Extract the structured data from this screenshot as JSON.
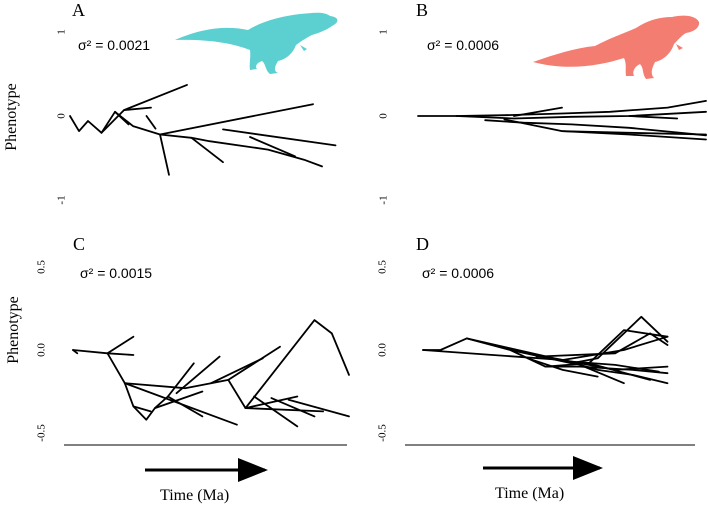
{
  "colors": {
    "ink": "#000000",
    "dino_a": "#5ccfd0",
    "dino_b": "#f47d72"
  },
  "time_axis": {
    "label": "Time (Ma)"
  },
  "chart_data": [
    {
      "type": "line",
      "panel_label": "A",
      "annotation": "σ² = 0.0021",
      "ylabel": "Phenotype",
      "ylim": [
        -1,
        1
      ],
      "yticks": [
        {
          "v": 1,
          "t": "1"
        },
        {
          "v": 0,
          "t": "0"
        },
        {
          "v": -1,
          "t": "-1"
        }
      ],
      "silhouette": "theropod-cyan-icon",
      "series": [
        {
          "x": [
            0.0,
            0.1,
            0.2,
            0.35,
            0.5,
            0.7,
            1.0,
            1.35,
            1.55,
            2.2,
            2.6,
            2.8
          ],
          "y": [
            0.0,
            -0.18,
            -0.06,
            -0.2,
            0.05,
            -0.12,
            -0.22,
            -0.26,
            -0.3,
            -0.4,
            -0.52,
            -0.6
          ]
        },
        {
          "x": [
            0.35,
            0.6,
            1.3
          ],
          "y": [
            -0.2,
            0.07,
            0.37
          ]
        },
        {
          "x": [
            0.6,
            0.9
          ],
          "y": [
            0.07,
            0.1
          ]
        },
        {
          "x": [
            0.5,
            0.65
          ],
          "y": [
            0.05,
            -0.1
          ]
        },
        {
          "x": [
            0.85,
            0.95
          ],
          "y": [
            0.0,
            -0.15
          ]
        },
        {
          "x": [
            1.0,
            1.1
          ],
          "y": [
            -0.22,
            -0.7
          ]
        },
        {
          "x": [
            1.0,
            2.7
          ],
          "y": [
            -0.22,
            0.14
          ]
        },
        {
          "x": [
            1.35,
            1.7
          ],
          "y": [
            -0.26,
            -0.55
          ]
        },
        {
          "x": [
            1.7,
            2.95
          ],
          "y": [
            -0.16,
            -0.35
          ]
        },
        {
          "x": [
            2.0,
            2.5
          ],
          "y": [
            -0.25,
            -0.48
          ]
        }
      ]
    },
    {
      "type": "line",
      "panel_label": "B",
      "annotation": "σ² = 0.0006",
      "ylabel": "",
      "ylim": [
        -1,
        1
      ],
      "yticks": [
        {
          "v": 1,
          "t": "1"
        },
        {
          "v": 0,
          "t": "0"
        },
        {
          "v": -1,
          "t": "-1"
        }
      ],
      "silhouette": "ceratosaur-salmon-icon",
      "series": [
        {
          "x": [
            0.0,
            0.4,
            0.9,
            1.5,
            2.0,
            2.6,
            3.0
          ],
          "y": [
            0.0,
            0.0,
            0.01,
            0.03,
            0.05,
            0.1,
            0.18
          ]
        },
        {
          "x": [
            0.4,
            1.0,
            1.6,
            2.2,
            3.0
          ],
          "y": [
            0.0,
            -0.03,
            -0.01,
            0.0,
            0.05
          ]
        },
        {
          "x": [
            0.7,
            1.1,
            1.6,
            2.2,
            3.0
          ],
          "y": [
            -0.05,
            -0.08,
            -0.1,
            -0.14,
            -0.23
          ]
        },
        {
          "x": [
            0.9,
            1.5,
            2.2,
            3.0
          ],
          "y": [
            -0.04,
            -0.18,
            -0.22,
            -0.28
          ]
        },
        {
          "x": [
            1.5,
            2.2,
            3.0
          ],
          "y": [
            -0.18,
            -0.2,
            -0.22
          ]
        },
        {
          "x": [
            1.0,
            1.5
          ],
          "y": [
            0.0,
            0.1
          ]
        },
        {
          "x": [
            2.2,
            2.7
          ],
          "y": [
            0.0,
            -0.03
          ]
        }
      ]
    },
    {
      "type": "line",
      "panel_label": "C",
      "annotation": "σ² = 0.0015",
      "ylabel": "Phenotype",
      "ylim": [
        -0.5,
        0.5
      ],
      "yticks": [
        {
          "v": 0.5,
          "t": "0.5"
        },
        {
          "v": 0,
          "t": "0.0"
        },
        {
          "v": -0.5,
          "t": "-0.5"
        }
      ],
      "series": [
        {
          "x": [
            0.0,
            0.05
          ],
          "y": [
            0.0,
            -0.02
          ]
        },
        {
          "x": [
            0.0,
            0.4,
            0.7
          ],
          "y": [
            0.0,
            -0.02,
            0.08
          ]
        },
        {
          "x": [
            0.4,
            0.7
          ],
          "y": [
            -0.02,
            -0.03
          ]
        },
        {
          "x": [
            0.4,
            0.6,
            0.7,
            0.85,
            0.95,
            1.1,
            1.4
          ],
          "y": [
            -0.02,
            -0.2,
            -0.34,
            -0.42,
            -0.35,
            -0.28,
            -0.08
          ]
        },
        {
          "x": [
            0.6,
            1.3,
            1.6,
            1.8,
            2.0,
            2.8,
            3.0,
            3.2
          ],
          "y": [
            -0.2,
            -0.23,
            -0.2,
            -0.18,
            -0.35,
            0.18,
            0.1,
            -0.15
          ]
        },
        {
          "x": [
            0.7,
            0.9
          ],
          "y": [
            -0.34,
            -0.37
          ]
        },
        {
          "x": [
            0.95,
            1.5
          ],
          "y": [
            -0.35,
            -0.25
          ]
        },
        {
          "x": [
            1.1,
            1.5
          ],
          "y": [
            -0.28,
            -0.4
          ]
        },
        {
          "x": [
            0.6,
            1.9
          ],
          "y": [
            -0.2,
            -0.45
          ]
        },
        {
          "x": [
            1.2,
            1.7
          ],
          "y": [
            -0.26,
            -0.04
          ]
        },
        {
          "x": [
            1.6,
            2.2
          ],
          "y": [
            -0.2,
            -0.05
          ]
        },
        {
          "x": [
            1.8,
            2.4
          ],
          "y": [
            -0.18,
            0.02
          ]
        },
        {
          "x": [
            2.0,
            2.6
          ],
          "y": [
            -0.35,
            -0.28
          ]
        },
        {
          "x": [
            2.0,
            2.9
          ],
          "y": [
            -0.35,
            -0.37
          ]
        },
        {
          "x": [
            2.1,
            2.6
          ],
          "y": [
            -0.28,
            -0.46
          ]
        },
        {
          "x": [
            2.5,
            3.2
          ],
          "y": [
            -0.3,
            -0.4
          ]
        },
        {
          "x": [
            2.3,
            2.8
          ],
          "y": [
            -0.29,
            -0.4
          ]
        }
      ]
    },
    {
      "type": "line",
      "panel_label": "D",
      "annotation": "σ² = 0.0006",
      "ylabel": "",
      "ylim": [
        -0.5,
        0.5
      ],
      "yticks": [
        {
          "v": 0.5,
          "t": "0.5"
        },
        {
          "v": 0,
          "t": "0.0"
        },
        {
          "v": -0.5,
          "t": "-0.5"
        }
      ],
      "series": [
        {
          "x": [
            0.0,
            0.2,
            0.5,
            1.0,
            1.4,
            1.9,
            2.6
          ],
          "y": [
            0.0,
            0.0,
            0.07,
            0.0,
            -0.1,
            -0.08,
            -0.18
          ]
        },
        {
          "x": [
            0.0,
            0.8,
            1.6,
            2.3,
            2.8
          ],
          "y": [
            0.0,
            -0.03,
            -0.06,
            0.0,
            0.08
          ]
        },
        {
          "x": [
            0.5,
            1.5,
            2.2,
            2.8
          ],
          "y": [
            0.07,
            -0.05,
            -0.12,
            -0.1
          ]
        },
        {
          "x": [
            1.0,
            1.7,
            2.0,
            2.5,
            2.8
          ],
          "y": [
            0.0,
            -0.08,
            -0.05,
            0.2,
            0.05
          ]
        },
        {
          "x": [
            1.4,
            1.8,
            2.4,
            2.8
          ],
          "y": [
            -0.1,
            -0.1,
            -0.12,
            -0.14
          ]
        },
        {
          "x": [
            1.6,
            2.0,
            2.4,
            2.8
          ],
          "y": [
            -0.06,
            -0.12,
            -0.15,
            -0.2
          ]
        },
        {
          "x": [
            1.9,
            2.3,
            2.8
          ],
          "y": [
            -0.08,
            0.12,
            0.08
          ]
        },
        {
          "x": [
            1.3,
            2.2,
            2.6,
            2.8
          ],
          "y": [
            -0.04,
            -0.02,
            0.1,
            0.03
          ]
        },
        {
          "x": [
            1.2,
            1.6,
            2.0
          ],
          "y": [
            -0.05,
            -0.12,
            -0.16
          ]
        },
        {
          "x": [
            1.7,
            2.2,
            2.7
          ],
          "y": [
            -0.07,
            -0.09,
            -0.13
          ]
        },
        {
          "x": [
            1.8,
            2.3
          ],
          "y": [
            -0.09,
            -0.2
          ]
        }
      ]
    }
  ]
}
